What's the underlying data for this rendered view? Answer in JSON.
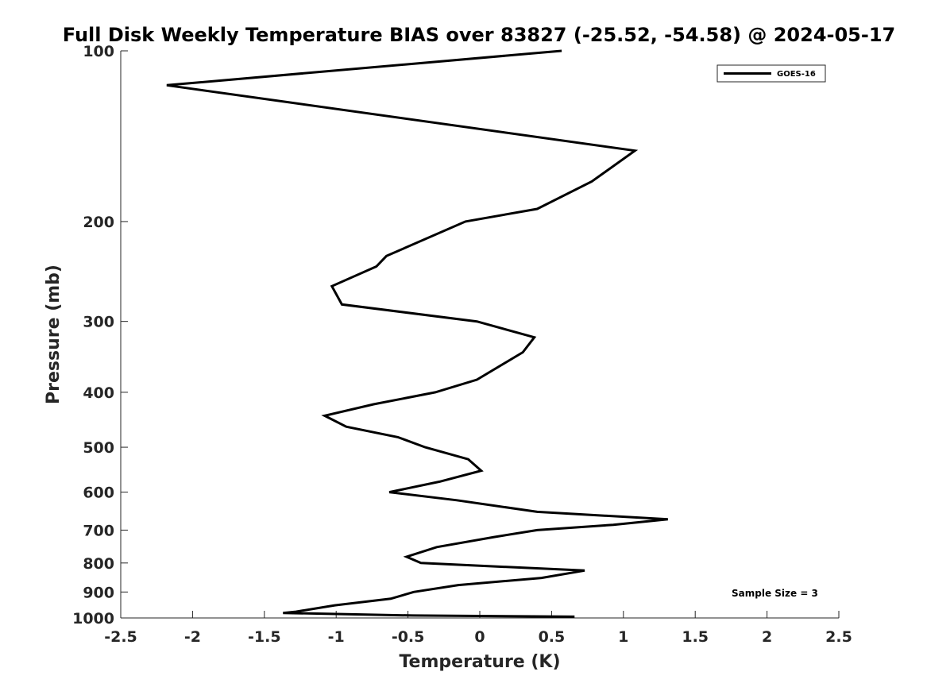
{
  "chart_data": {
    "type": "line",
    "title": "Full Disk Weekly Temperature BIAS over 83827 (-25.52, -54.58) @ 2024-05-17",
    "xlabel": "Temperature (K)",
    "ylabel": "Pressure (mb)",
    "xlim": [
      -2.5,
      2.5
    ],
    "ylim": [
      100,
      1000
    ],
    "y_scale": "log",
    "y_reversed": true,
    "x_ticks": [
      -2.5,
      -2,
      -1.5,
      -1,
      -0.5,
      0,
      0.5,
      1,
      1.5,
      2,
      2.5
    ],
    "x_tick_labels": [
      "-2.5",
      "-2",
      "-1.5",
      "-1",
      "-0.5",
      "0",
      "0.5",
      "1",
      "1.5",
      "2",
      "2.5"
    ],
    "y_ticks": [
      100,
      200,
      300,
      400,
      500,
      600,
      700,
      800,
      900,
      1000
    ],
    "y_tick_labels": [
      "100",
      "200",
      "300",
      "400",
      "500",
      "600",
      "700",
      "800",
      "900",
      "1000"
    ],
    "grid": false,
    "legend_position": "top-right",
    "annotation": "Sample Size = 3",
    "series": [
      {
        "name": "GOES-16",
        "color": "#000000",
        "x": [
          0.57,
          -2.18,
          1.08,
          0.78,
          0.4,
          -0.1,
          -0.65,
          -0.72,
          -1.03,
          -0.96,
          -0.02,
          0.38,
          0.3,
          -0.02,
          -0.31,
          -0.74,
          -1.08,
          -0.93,
          -0.57,
          -0.38,
          -0.08,
          0.01,
          -0.28,
          -0.63,
          -0.16,
          0.4,
          1.31,
          0.93,
          0.4,
          0.1,
          -0.3,
          -0.51,
          -0.41,
          0.73,
          0.43,
          -0.15,
          -0.46,
          -0.62,
          -1.01,
          -1.28,
          -1.37,
          -0.47,
          0.66
        ],
        "y": [
          100,
          115,
          150,
          170,
          190,
          200,
          230,
          240,
          260,
          280,
          300,
          320,
          340,
          380,
          400,
          420,
          440,
          460,
          480,
          500,
          525,
          550,
          575,
          600,
          620,
          650,
          670,
          685,
          700,
          720,
          750,
          780,
          800,
          825,
          850,
          875,
          900,
          925,
          950,
          975,
          980,
          990,
          995
        ]
      }
    ]
  }
}
